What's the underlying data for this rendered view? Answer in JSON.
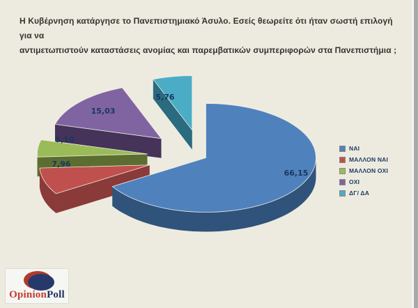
{
  "title": {
    "line1": "Η Κυβέρνηση  κατάργησε το Πανεπιστημιακό Άσυλο. Εσείς  θεωρείτε ότι ήταν σωστή επιλογή για να",
    "line2": "αντιμετωπιστούν καταστάσεις ανομίας και παρεμβατικών συμπεριφορών στα Πανεπιστήμια ;"
  },
  "chart_data": {
    "type": "pie",
    "three_d": true,
    "exploded": true,
    "start_angle_deg": 0,
    "direction": "clockwise",
    "labels": [
      "ΝΑΙ",
      "ΜΑΛΛΟΝ  ΝΑΙ",
      "ΜΑΛΛΟΝ  ΟΧΙ",
      "ΟΧΙ",
      "ΔΓ/ ΔΑ"
    ],
    "values": [
      66.15,
      7.96,
      5.1,
      15.03,
      5.76
    ],
    "display_values": [
      "66,15",
      "7,96",
      "5,10",
      "15,03",
      "5,76"
    ],
    "colors": [
      "#4F81BD",
      "#C0504D",
      "#9BBB59",
      "#8064A2",
      "#4BACC6"
    ],
    "wall_colors": [
      "#2F537B",
      "#8A3A38",
      "#5C6E2F",
      "#453359",
      "#2A6B80"
    ],
    "legend_position": "right",
    "background": "#EDEBE0"
  },
  "logo": {
    "text_primary": "Opinion",
    "text_secondary": "Poll",
    "primary_color": "#C13B2F",
    "secondary_color": "#1F3060"
  },
  "page": {
    "background": "#EDEBE0",
    "scrollbar_color": "#A9A9AB"
  }
}
